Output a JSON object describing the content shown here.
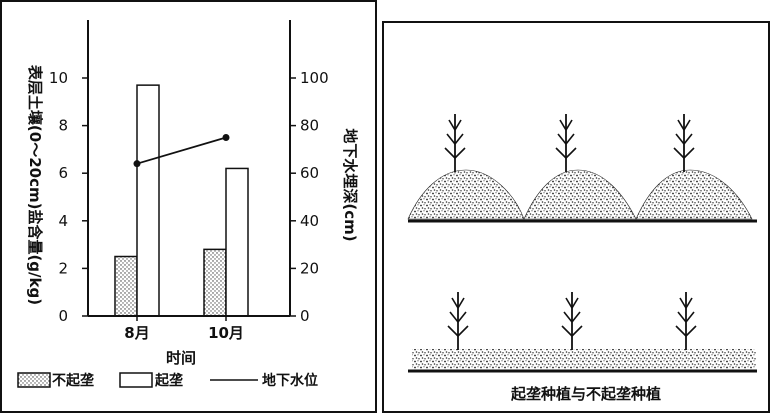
{
  "chart_data": {
    "type": "bar",
    "categories": [
      "8月",
      "10月"
    ],
    "series": [
      {
        "name": "不起垄",
        "values": [
          2.5,
          2.8
        ],
        "axis": "left",
        "pattern": "dotted"
      },
      {
        "name": "起垄",
        "values": [
          9.7,
          6.2
        ],
        "axis": "left",
        "pattern": "open"
      },
      {
        "name": "地下水位",
        "values": [
          64,
          75
        ],
        "axis": "right",
        "type": "line"
      }
    ],
    "xlabel": "时间",
    "ylabel": "表层土壤(0～20cm)盐含量(g/kg)",
    "ylabel_right": "地下水埋深(cm)",
    "ylim": [
      0,
      10
    ],
    "ylim_right": [
      0,
      100
    ],
    "yticks": [
      "0",
      "2",
      "4",
      "6",
      "8",
      "10"
    ],
    "yticks_right": [
      "0",
      "20",
      "40",
      "60",
      "80",
      "100"
    ],
    "legend": {
      "position": "bottom",
      "items": [
        "不起垄",
        "起垄",
        "地下水位"
      ]
    }
  },
  "illustration": {
    "caption": "起垄种植与不起垄种植"
  }
}
